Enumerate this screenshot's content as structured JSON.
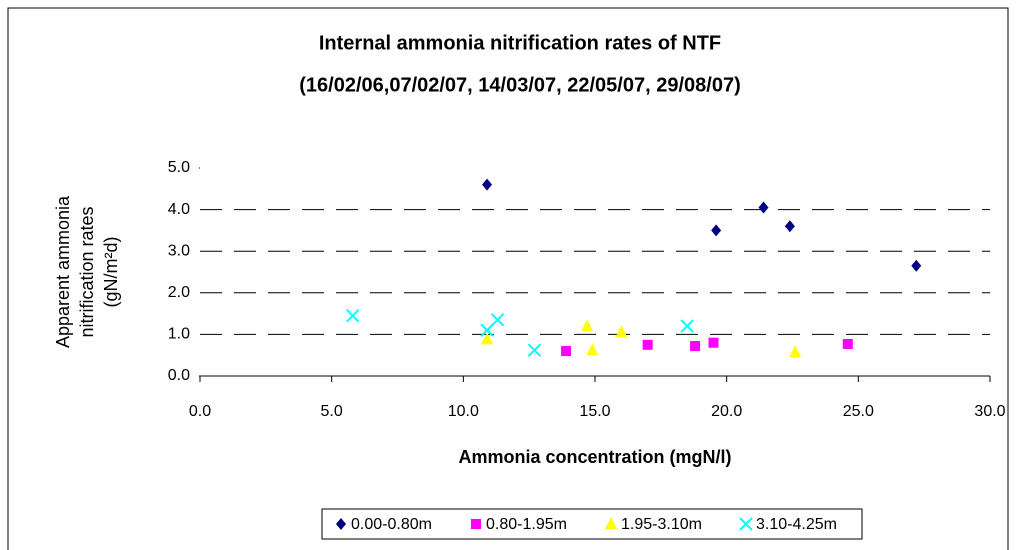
{
  "chart_data": {
    "type": "scatter",
    "title": [
      "Internal ammonia nitrification rates of NTF",
      "(16/02/06,07/02/07, 14/03/07, 22/05/07, 29/08/07)"
    ],
    "x_label": "Ammonia concentration (mgN/l)",
    "y_label": [
      "Apparent ammonia",
      "nitrification rates",
      "(gN/m²d)"
    ],
    "xlim": [
      0,
      30
    ],
    "ylim": [
      0,
      5
    ],
    "xticks": [
      {
        "value": 0,
        "label": "0.0"
      },
      {
        "value": 5,
        "label": "5.0"
      },
      {
        "value": 10,
        "label": "10.0"
      },
      {
        "value": 15,
        "label": "15.0"
      },
      {
        "value": 20,
        "label": "20.0"
      },
      {
        "value": 25,
        "label": "25.0"
      },
      {
        "value": 30,
        "label": "30.0"
      }
    ],
    "yticks": [
      {
        "value": 0,
        "label": "0.0"
      },
      {
        "value": 1,
        "label": "1.0"
      },
      {
        "value": 2,
        "label": "2.0"
      },
      {
        "value": 3,
        "label": "3.0"
      },
      {
        "value": 4,
        "label": "4.0"
      },
      {
        "value": 5,
        "label": "5.0"
      }
    ],
    "grid": true,
    "legend": "bottom",
    "series": [
      {
        "name": "0.00-0.80m",
        "color": "#000080",
        "marker": "diamond",
        "x": [
          10.9,
          19.6,
          21.4,
          22.4,
          27.2
        ],
        "values": [
          4.6,
          3.5,
          4.05,
          3.6,
          2.65
        ]
      },
      {
        "name": "0.80-1.95m",
        "color": "#ff00ff",
        "marker": "square",
        "x": [
          13.9,
          17.0,
          18.8,
          19.5,
          24.6
        ],
        "values": [
          0.6,
          0.75,
          0.72,
          0.8,
          0.77
        ]
      },
      {
        "name": "1.95-3.10m",
        "color": "#ffff00",
        "marker": "triangle",
        "x": [
          10.9,
          14.7,
          14.9,
          16.0,
          22.6
        ],
        "values": [
          0.88,
          1.2,
          0.62,
          1.05,
          0.57
        ]
      },
      {
        "name": "3.10-4.25m",
        "color": "#00ffff",
        "marker": "cross",
        "x": [
          5.8,
          10.9,
          11.3,
          12.7,
          18.5
        ],
        "values": [
          1.45,
          1.1,
          1.35,
          0.62,
          1.2
        ]
      }
    ]
  }
}
